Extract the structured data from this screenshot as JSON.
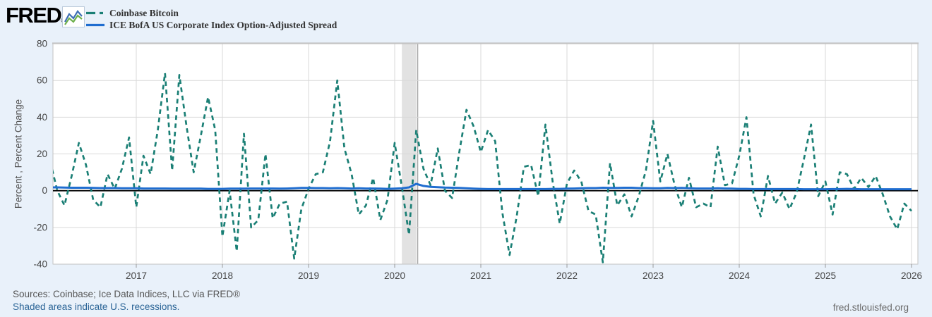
{
  "header": {
    "logo_text": "FRED",
    "registered_mark": "®"
  },
  "legend": {
    "items": [
      {
        "label": "Coinbase Bitcoin",
        "color": "#1a7f75",
        "line_style": "dashed"
      },
      {
        "label": "ICE BofA US Corporate Index Option-Adjusted Spread",
        "color": "#1f6dd0",
        "line_style": "solid"
      }
    ]
  },
  "footer": {
    "sources": "Sources: Coinbase; Ice Data Indices, LLC via FRED®",
    "recession_note": "Shaded areas indicate U.S. recessions.",
    "site_url": "fred.stlouisfed.org"
  },
  "colors": {
    "background": "#e9f1fa",
    "plot_background": "#ffffff",
    "plot_border": "#c3c3c3",
    "gridline": "#d9d9d9",
    "zero_line": "#000000",
    "recession_band": "#e2e2e2",
    "recession_edge_line": "#a8a8a8",
    "tick_text": "#444444"
  },
  "chart_data": {
    "type": "line",
    "title": "",
    "xlabel": "",
    "ylabel": "Percent , Percent Change",
    "ylim": [
      -40,
      80
    ],
    "y_ticks": [
      80,
      60,
      40,
      20,
      0,
      -20,
      -40
    ],
    "x_ticks": [
      2017,
      2018,
      2019,
      2020,
      2021,
      2022,
      2023,
      2024,
      2025,
      2026
    ],
    "xlim": [
      2016.0,
      2026.07
    ],
    "grid": true,
    "zero_line_value": 0,
    "legend_position": "top-left",
    "frequency": "monthly",
    "start_month": "2016-01",
    "recessions": [
      {
        "start": 2020.083,
        "end": 2020.25
      }
    ],
    "series": [
      {
        "name": "Coinbase Bitcoin",
        "style": "dashed",
        "color": "#1a7f75",
        "values": [
          16,
          0,
          -8,
          8,
          26,
          14,
          -5,
          -9,
          9,
          1,
          12,
          29,
          -9,
          19,
          9,
          33,
          64,
          11,
          63,
          35,
          10,
          30,
          51,
          33,
          -25,
          0,
          -33,
          31,
          -20,
          -16,
          20,
          -15,
          -7,
          -6,
          -37,
          -10,
          1,
          9,
          10,
          27,
          60,
          23,
          9,
          -13,
          -8,
          7,
          -16,
          -5,
          26,
          2,
          -24,
          33,
          12,
          3,
          23,
          0,
          -4,
          21,
          44,
          35,
          21,
          33,
          27,
          -12,
          -35,
          -14,
          13,
          14,
          -3,
          36,
          5,
          -18,
          4,
          11,
          5,
          -11,
          -13,
          -39,
          15,
          -8,
          -2,
          -14,
          -3,
          11,
          38,
          5,
          20,
          3,
          -9,
          7,
          -9,
          -7,
          -9,
          24,
          3,
          4,
          19,
          40,
          -2,
          -14,
          8,
          -7,
          -1,
          -10,
          -1,
          17,
          36,
          -3,
          5,
          -13,
          10,
          9,
          1,
          7,
          2,
          8,
          -2,
          -14,
          -21,
          -7,
          -11
        ]
      },
      {
        "name": "ICE BofA US Corporate Index Option-Adjusted Spread",
        "style": "solid",
        "color": "#1f6dd0",
        "values": [
          1.8,
          1.8,
          1.7,
          1.6,
          1.6,
          1.6,
          1.5,
          1.4,
          1.4,
          1.4,
          1.3,
          1.3,
          1.3,
          1.2,
          1.2,
          1.2,
          1.2,
          1.1,
          1.1,
          1.1,
          1.1,
          1.1,
          1.0,
          1.0,
          1.0,
          1.1,
          1.1,
          1.1,
          1.2,
          1.2,
          1.2,
          1.2,
          1.1,
          1.2,
          1.3,
          1.5,
          1.5,
          1.4,
          1.4,
          1.3,
          1.4,
          1.3,
          1.2,
          1.3,
          1.2,
          1.2,
          1.1,
          1.0,
          1.1,
          1.3,
          1.8,
          3.7,
          2.6,
          2.1,
          1.9,
          1.7,
          1.6,
          1.5,
          1.3,
          1.1,
          1.0,
          0.9,
          0.9,
          0.9,
          0.9,
          0.9,
          0.9,
          0.9,
          0.9,
          0.9,
          1.0,
          1.0,
          1.1,
          1.2,
          1.3,
          1.4,
          1.4,
          1.6,
          1.5,
          1.5,
          1.6,
          1.6,
          1.4,
          1.4,
          1.3,
          1.3,
          1.5,
          1.4,
          1.5,
          1.3,
          1.2,
          1.2,
          1.2,
          1.3,
          1.2,
          1.1,
          1.0,
          1.0,
          0.9,
          0.9,
          0.9,
          0.9,
          0.9,
          0.9,
          0.9,
          0.8,
          0.8,
          0.8,
          0.8,
          0.9,
          0.9,
          1.0,
          0.9,
          0.8,
          0.8,
          0.8,
          0.8,
          0.8,
          0.8,
          0.8,
          0.8
        ]
      }
    ]
  }
}
